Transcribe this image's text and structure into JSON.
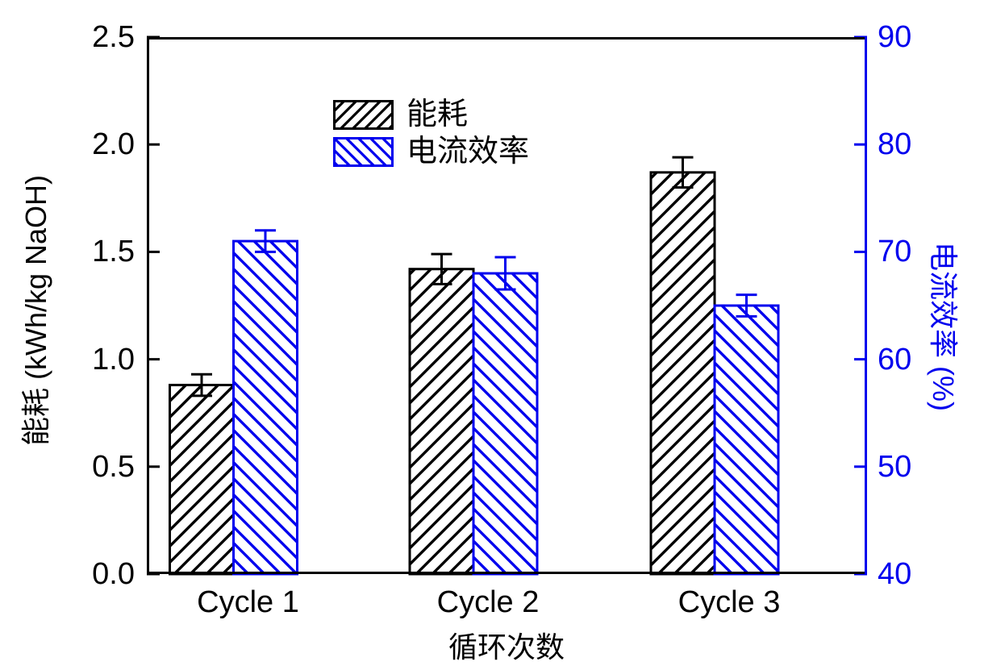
{
  "chart_data": {
    "type": "bar",
    "title": "",
    "categories": [
      "Cycle 1",
      "Cycle 2",
      "Cycle 3"
    ],
    "series": [
      {
        "name": "能耗",
        "axis": "left",
        "unit": "kWh/kg NaOH",
        "color": "#000000",
        "hatch": "forward-diagonal",
        "values": [
          0.88,
          1.42,
          1.87
        ],
        "errors": [
          0.05,
          0.07,
          0.07
        ]
      },
      {
        "name": "电流效率",
        "axis": "right",
        "unit": "%",
        "color": "#0000EE",
        "hatch": "backward-diagonal",
        "values": [
          71,
          68,
          65
        ],
        "errors": [
          1,
          1.5,
          1
        ]
      }
    ],
    "axes": {
      "left": {
        "label": "能耗 (kWh/kg NaOH)",
        "min": 0.0,
        "max": 2.5,
        "ticks": [
          0.0,
          0.5,
          1.0,
          1.5,
          2.0,
          2.5
        ],
        "tick_labels": [
          "0.0",
          "0.5",
          "1.0",
          "1.5",
          "2.0",
          "2.5"
        ],
        "color": "#000000"
      },
      "right": {
        "label": "电流效率 (%)",
        "min": 40,
        "max": 90,
        "ticks": [
          40,
          50,
          60,
          70,
          80,
          90
        ],
        "tick_labels": [
          "40",
          "50",
          "60",
          "70",
          "80",
          "90"
        ],
        "color": "#0000EE"
      },
      "x": {
        "label": "循环次数",
        "color": "#000000"
      }
    },
    "legend": {
      "entries": [
        "能耗",
        "电流效率"
      ],
      "position": "upper-center-left"
    },
    "grid": false,
    "error_bars": true,
    "background": "#ffffff"
  }
}
